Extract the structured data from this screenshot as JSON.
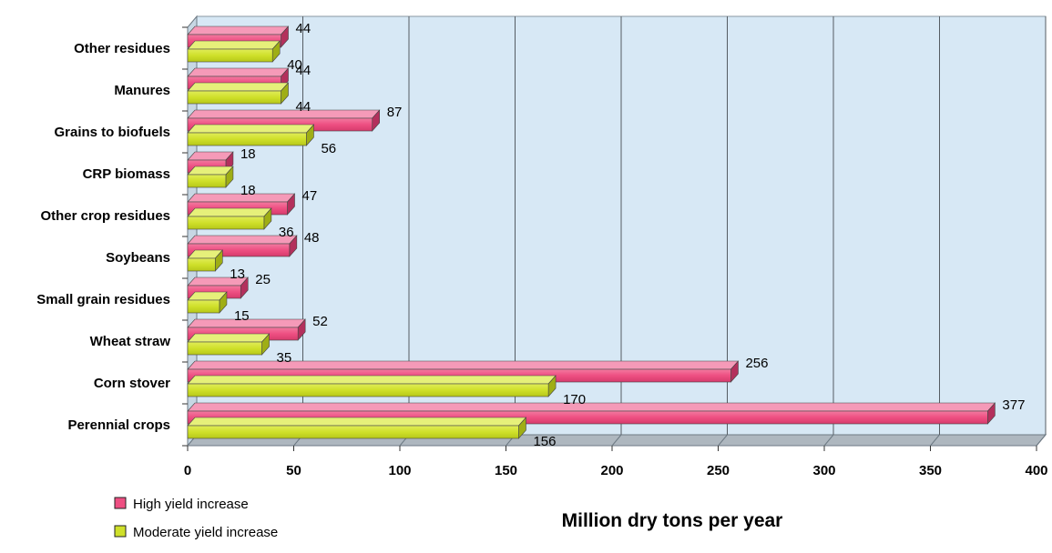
{
  "chart_data": {
    "type": "bar",
    "orientation": "horizontal",
    "categories": [
      "Other residues",
      "Manures",
      "Grains to biofuels",
      "CRP biomass",
      "Other crop residues",
      "Soybeans",
      "Small grain residues",
      "Wheat straw",
      "Corn stover",
      "Perennial crops"
    ],
    "series": [
      {
        "name": "High yield increase",
        "color": "#ee4f82",
        "values": [
          44,
          44,
          87,
          18,
          47,
          48,
          25,
          52,
          256,
          377
        ]
      },
      {
        "name": "Moderate yield increase",
        "color": "#cfe02a",
        "values": [
          40,
          44,
          56,
          18,
          36,
          13,
          15,
          35,
          170,
          156
        ]
      }
    ],
    "xlabel": "Million dry tons per year",
    "xlim": [
      0,
      400
    ],
    "xticks": [
      0,
      50,
      100,
      150,
      200,
      250,
      300,
      350,
      400
    ],
    "grid": true,
    "legend_position": "bottom-left"
  }
}
